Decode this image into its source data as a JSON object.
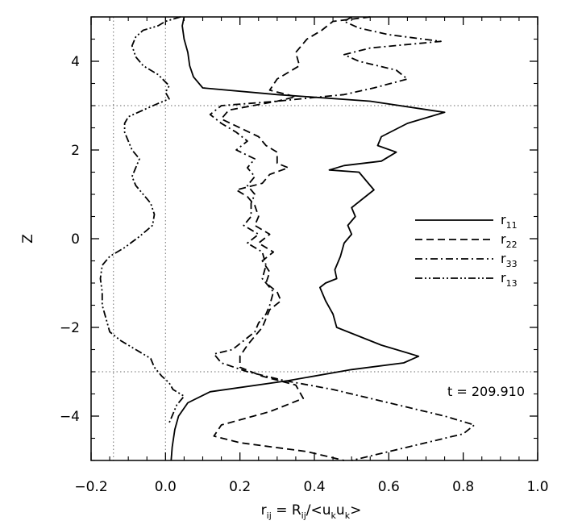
{
  "chart_data": {
    "type": "line",
    "orientation": "profile (x = value, y = Z)",
    "title": "",
    "xlabel": {
      "base": "r",
      "sub1": "ij",
      "mid": " = R",
      "sub2": "ij",
      "mid2": "/<u",
      "sub3": "k",
      "mid3": "u",
      "sub4": "k",
      "end": ">"
    },
    "ylabel": "Z",
    "xlim": [
      -0.2,
      1.0
    ],
    "ylim": [
      -5,
      5
    ],
    "xticks": [
      -0.2,
      0.0,
      0.2,
      0.4,
      0.6,
      0.8,
      1.0
    ],
    "xtick_labels": [
      "−0.2",
      "0.0",
      "0.2",
      "0.4",
      "0.6",
      "0.8",
      "1.0"
    ],
    "yticks": [
      -4,
      -2,
      0,
      2,
      4
    ],
    "ytick_labels": [
      "−4",
      "−2",
      "0",
      "2",
      "4"
    ],
    "annotation": "t = 209.910",
    "legend_placement": "center-right",
    "reference_lines": {
      "vertical": [
        -0.14,
        0.0
      ],
      "horizontal": [
        3.0,
        -3.0
      ]
    },
    "series": [
      {
        "name_base": "r",
        "name_sub": "11",
        "style": "solid",
        "points": [
          [
            0.05,
            5.0
          ],
          [
            0.045,
            4.8
          ],
          [
            0.05,
            4.5
          ],
          [
            0.06,
            4.2
          ],
          [
            0.065,
            3.9
          ],
          [
            0.075,
            3.65
          ],
          [
            0.1,
            3.4
          ],
          [
            0.3,
            3.25
          ],
          [
            0.55,
            3.1
          ],
          [
            0.75,
            2.85
          ],
          [
            0.65,
            2.6
          ],
          [
            0.58,
            2.3
          ],
          [
            0.57,
            2.1
          ],
          [
            0.62,
            1.95
          ],
          [
            0.58,
            1.75
          ],
          [
            0.48,
            1.65
          ],
          [
            0.44,
            1.55
          ],
          [
            0.52,
            1.5
          ],
          [
            0.54,
            1.3
          ],
          [
            0.56,
            1.1
          ],
          [
            0.53,
            0.9
          ],
          [
            0.5,
            0.7
          ],
          [
            0.51,
            0.5
          ],
          [
            0.49,
            0.3
          ],
          [
            0.5,
            0.1
          ],
          [
            0.48,
            -0.1
          ],
          [
            0.47,
            -0.4
          ],
          [
            0.455,
            -0.7
          ],
          [
            0.46,
            -0.9
          ],
          [
            0.43,
            -1.0
          ],
          [
            0.415,
            -1.1
          ],
          [
            0.43,
            -1.4
          ],
          [
            0.45,
            -1.7
          ],
          [
            0.46,
            -2.0
          ],
          [
            0.52,
            -2.2
          ],
          [
            0.58,
            -2.4
          ],
          [
            0.68,
            -2.65
          ],
          [
            0.64,
            -2.8
          ],
          [
            0.5,
            -2.95
          ],
          [
            0.33,
            -3.2
          ],
          [
            0.12,
            -3.45
          ],
          [
            0.06,
            -3.7
          ],
          [
            0.035,
            -4.0
          ],
          [
            0.025,
            -4.3
          ],
          [
            0.018,
            -4.7
          ],
          [
            0.015,
            -5.0
          ]
        ]
      },
      {
        "name_base": "r",
        "name_sub": "22",
        "style": "dashed",
        "points": [
          [
            0.55,
            5.0
          ],
          [
            0.45,
            4.9
          ],
          [
            0.42,
            4.7
          ],
          [
            0.38,
            4.5
          ],
          [
            0.35,
            4.2
          ],
          [
            0.36,
            3.9
          ],
          [
            0.3,
            3.6
          ],
          [
            0.28,
            3.35
          ],
          [
            0.35,
            3.2
          ],
          [
            0.3,
            3.1
          ],
          [
            0.17,
            2.9
          ],
          [
            0.15,
            2.7
          ],
          [
            0.2,
            2.5
          ],
          [
            0.25,
            2.3
          ],
          [
            0.27,
            2.1
          ],
          [
            0.3,
            1.95
          ],
          [
            0.3,
            1.7
          ],
          [
            0.33,
            1.6
          ],
          [
            0.28,
            1.45
          ],
          [
            0.26,
            1.25
          ],
          [
            0.19,
            1.1
          ],
          [
            0.22,
            0.95
          ],
          [
            0.24,
            0.75
          ],
          [
            0.25,
            0.5
          ],
          [
            0.24,
            0.3
          ],
          [
            0.28,
            0.1
          ],
          [
            0.25,
            -0.1
          ],
          [
            0.29,
            -0.3
          ],
          [
            0.26,
            -0.5
          ],
          [
            0.28,
            -0.75
          ],
          [
            0.27,
            -1.0
          ],
          [
            0.3,
            -1.2
          ],
          [
            0.31,
            -1.4
          ],
          [
            0.28,
            -1.6
          ],
          [
            0.27,
            -1.8
          ],
          [
            0.26,
            -2.0
          ],
          [
            0.24,
            -2.2
          ],
          [
            0.22,
            -2.4
          ],
          [
            0.2,
            -2.65
          ],
          [
            0.2,
            -2.9
          ],
          [
            0.26,
            -3.1
          ],
          [
            0.35,
            -3.3
          ],
          [
            0.37,
            -3.6
          ],
          [
            0.28,
            -3.9
          ],
          [
            0.15,
            -4.2
          ],
          [
            0.13,
            -4.45
          ],
          [
            0.2,
            -4.6
          ],
          [
            0.38,
            -4.8
          ],
          [
            0.48,
            -5.0
          ]
        ]
      },
      {
        "name_base": "r",
        "name_sub": "33",
        "style": "dash-dot",
        "points": [
          [
            0.5,
            5.0
          ],
          [
            0.48,
            4.9
          ],
          [
            0.52,
            4.75
          ],
          [
            0.6,
            4.6
          ],
          [
            0.74,
            4.45
          ],
          [
            0.55,
            4.3
          ],
          [
            0.48,
            4.15
          ],
          [
            0.52,
            4.0
          ],
          [
            0.62,
            3.8
          ],
          [
            0.65,
            3.6
          ],
          [
            0.56,
            3.4
          ],
          [
            0.48,
            3.25
          ],
          [
            0.3,
            3.1
          ],
          [
            0.15,
            3.0
          ],
          [
            0.12,
            2.8
          ],
          [
            0.15,
            2.6
          ],
          [
            0.19,
            2.4
          ],
          [
            0.22,
            2.2
          ],
          [
            0.19,
            2.0
          ],
          [
            0.24,
            1.8
          ],
          [
            0.22,
            1.6
          ],
          [
            0.24,
            1.4
          ],
          [
            0.22,
            1.2
          ],
          [
            0.24,
            1.0
          ],
          [
            0.23,
            0.8
          ],
          [
            0.23,
            0.5
          ],
          [
            0.21,
            0.3
          ],
          [
            0.25,
            0.1
          ],
          [
            0.22,
            -0.1
          ],
          [
            0.26,
            -0.3
          ],
          [
            0.27,
            -0.6
          ],
          [
            0.26,
            -0.9
          ],
          [
            0.29,
            -1.2
          ],
          [
            0.28,
            -1.5
          ],
          [
            0.27,
            -1.7
          ],
          [
            0.25,
            -1.9
          ],
          [
            0.24,
            -2.1
          ],
          [
            0.21,
            -2.3
          ],
          [
            0.18,
            -2.5
          ],
          [
            0.13,
            -2.6
          ],
          [
            0.15,
            -2.8
          ],
          [
            0.22,
            -3.0
          ],
          [
            0.32,
            -3.2
          ],
          [
            0.45,
            -3.4
          ],
          [
            0.6,
            -3.7
          ],
          [
            0.75,
            -4.0
          ],
          [
            0.83,
            -4.2
          ],
          [
            0.8,
            -4.4
          ],
          [
            0.7,
            -4.6
          ],
          [
            0.6,
            -4.8
          ],
          [
            0.5,
            -5.0
          ]
        ]
      },
      {
        "name_base": "r",
        "name_sub": "13",
        "style": "dash-dot-dot",
        "points": [
          [
            0.04,
            5.0
          ],
          [
            0.0,
            4.9
          ],
          [
            -0.02,
            4.8
          ],
          [
            -0.06,
            4.7
          ],
          [
            -0.08,
            4.55
          ],
          [
            -0.09,
            4.35
          ],
          [
            -0.08,
            4.1
          ],
          [
            -0.06,
            3.9
          ],
          [
            -0.02,
            3.7
          ],
          [
            0.01,
            3.45
          ],
          [
            0.0,
            3.3
          ],
          [
            0.01,
            3.15
          ],
          [
            -0.02,
            3.05
          ],
          [
            -0.06,
            2.9
          ],
          [
            -0.1,
            2.75
          ],
          [
            -0.11,
            2.6
          ],
          [
            -0.11,
            2.4
          ],
          [
            -0.1,
            2.2
          ],
          [
            -0.09,
            2.0
          ],
          [
            -0.07,
            1.8
          ],
          [
            -0.08,
            1.6
          ],
          [
            -0.09,
            1.4
          ],
          [
            -0.08,
            1.2
          ],
          [
            -0.06,
            1.0
          ],
          [
            -0.04,
            0.8
          ],
          [
            -0.03,
            0.55
          ],
          [
            -0.035,
            0.3
          ],
          [
            -0.07,
            0.05
          ],
          [
            -0.11,
            -0.2
          ],
          [
            -0.15,
            -0.4
          ],
          [
            -0.17,
            -0.6
          ],
          [
            -0.175,
            -0.9
          ],
          [
            -0.17,
            -1.2
          ],
          [
            -0.17,
            -1.5
          ],
          [
            -0.16,
            -1.8
          ],
          [
            -0.15,
            -2.1
          ],
          [
            -0.12,
            -2.3
          ],
          [
            -0.08,
            -2.5
          ],
          [
            -0.04,
            -2.7
          ],
          [
            -0.03,
            -2.9
          ],
          [
            -0.01,
            -3.1
          ],
          [
            0.01,
            -3.25
          ],
          [
            0.02,
            -3.4
          ],
          [
            0.05,
            -3.55
          ],
          [
            0.03,
            -3.75
          ],
          [
            0.02,
            -3.95
          ],
          [
            0.01,
            -4.15
          ]
        ]
      }
    ]
  }
}
